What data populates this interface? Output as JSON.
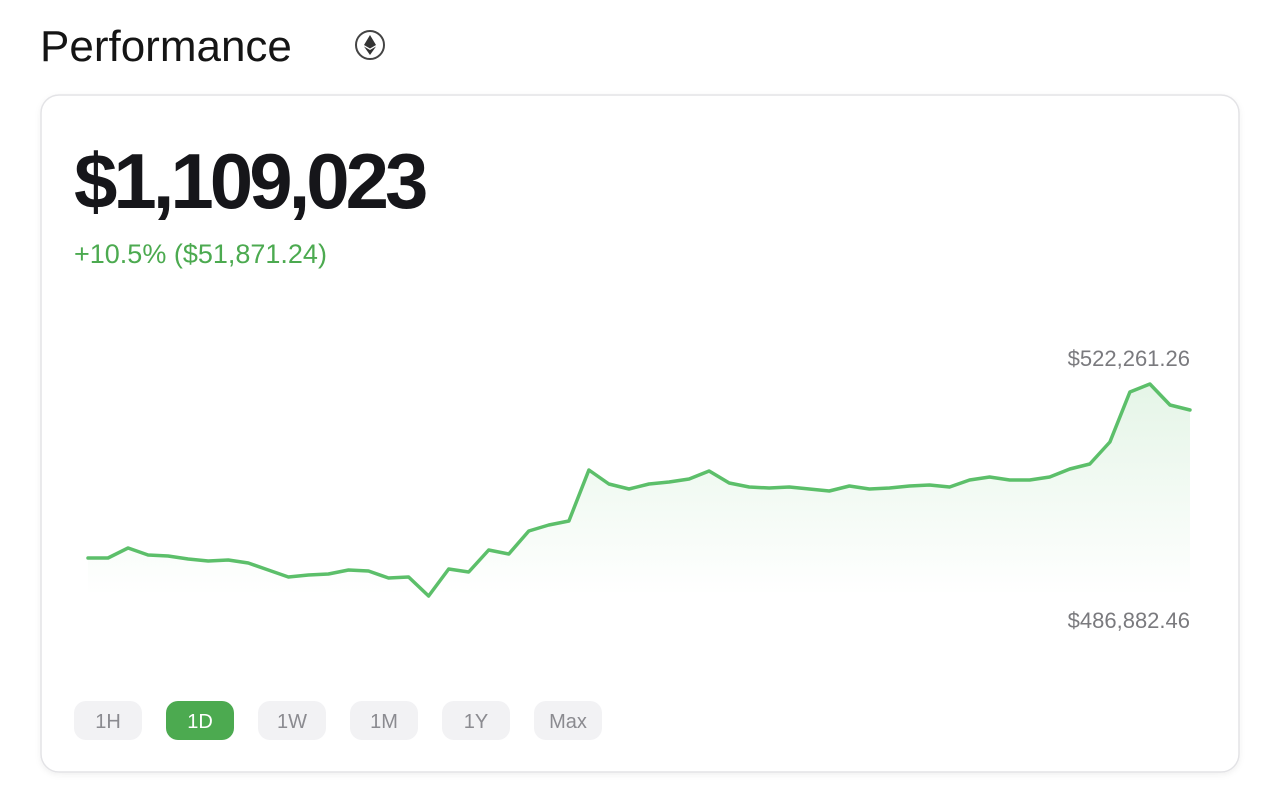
{
  "header": {
    "title": "Performance"
  },
  "card": {
    "value": "$1,109,023",
    "change": "+10.5% ($51,871.24)"
  },
  "chart_data": {
    "type": "line",
    "series": [
      {
        "color": "#5cbf6a",
        "values": [
          493224,
          493224,
          494893,
          493725,
          493558,
          493057,
          492724,
          492890,
          492390,
          491221,
          490053,
          490387,
          490554,
          491221,
          491055,
          489886,
          490053,
          486882.46,
          491388,
          490888,
          494559,
          493892,
          497730,
          498732,
          499399,
          507911,
          505574,
          504740,
          505574,
          505908,
          506409,
          507744,
          505741,
          505074,
          504907,
          505074,
          504740,
          504406,
          505240,
          504740,
          504907,
          505240,
          505407,
          505074,
          506242,
          506742,
          506242,
          506242,
          506742,
          508078,
          508912,
          512583,
          520928,
          522261.26,
          518758,
          517924
        ]
      }
    ],
    "ylim": [
      486882.46,
      522261.26
    ],
    "yticks": [
      {
        "value": 486882.46,
        "label": "$486,882.46"
      },
      {
        "value": 522261.26,
        "label": "$522,261.26"
      }
    ]
  },
  "ranges": [
    "1H",
    "1D",
    "1W",
    "1M",
    "1Y",
    "Max"
  ],
  "selected_range": 1
}
